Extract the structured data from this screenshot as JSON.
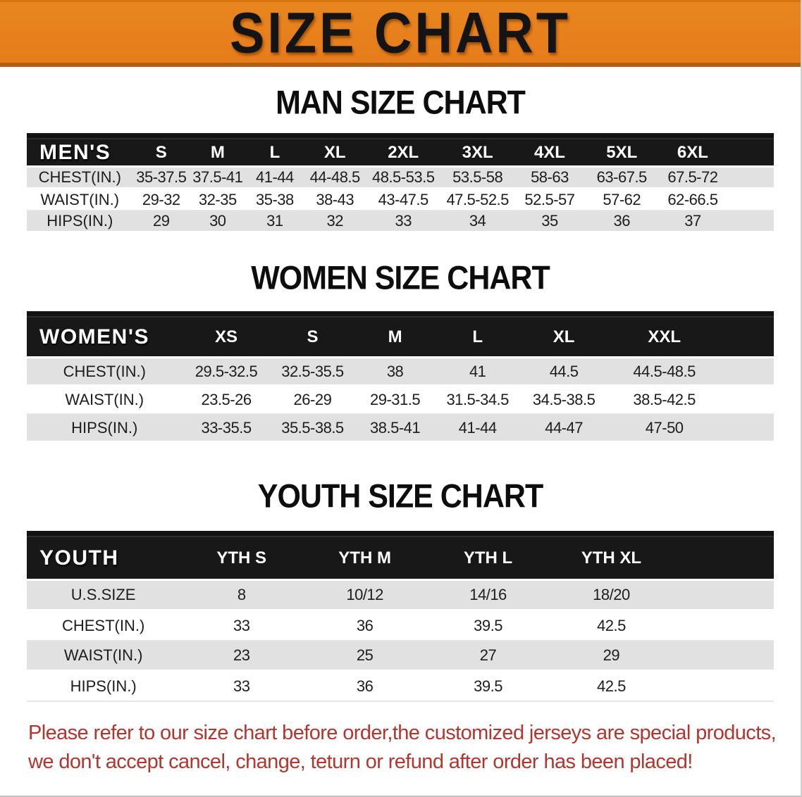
{
  "banner": {
    "title": "SIZE CHART"
  },
  "colors": {
    "banner_bg": "#E67C1A",
    "banner_border": "#B55D10",
    "banner_text": "#141414",
    "table_header_bg": "#181818",
    "table_header_text": "#FFFFFF",
    "row_shaded_bg": "#E1E1E1",
    "row_plain_bg": "#FFFFFF",
    "footer_text": "#B2362E"
  },
  "sections": [
    {
      "heading": "MAN SIZE CHART",
      "table": {
        "header_label": "MEN'S",
        "columns": [
          "S",
          "M",
          "L",
          "XL",
          "2XL",
          "3XL",
          "4XL",
          "5XL",
          "6XL"
        ],
        "rows": [
          {
            "label": "CHEST(IN.)",
            "values": [
              "35-37.5",
              "37.5-41",
              "41-44",
              "44-48.5",
              "48.5-53.5",
              "53.5-58",
              "58-63",
              "63-67.5",
              "67.5-72"
            ]
          },
          {
            "label": "WAIST(IN.)",
            "values": [
              "29-32",
              "32-35",
              "35-38",
              "38-43",
              "43-47.5",
              "47.5-52.5",
              "52.5-57",
              "57-62",
              "62-66.5"
            ]
          },
          {
            "label": "HIPS(IN.)",
            "values": [
              "29",
              "30",
              "31",
              "32",
              "33",
              "34",
              "35",
              "36",
              "37"
            ]
          }
        ]
      }
    },
    {
      "heading": "WOMEN SIZE CHART",
      "table": {
        "header_label": "WOMEN'S",
        "columns": [
          "XS",
          "S",
          "M",
          "L",
          "XL",
          "XXL"
        ],
        "rows": [
          {
            "label": "CHEST(IN.)",
            "values": [
              "29.5-32.5",
              "32.5-35.5",
              "38",
              "41",
              "44.5",
              "44.5-48.5"
            ]
          },
          {
            "label": "WAIST(IN.)",
            "values": [
              "23.5-26",
              "26-29",
              "29-31.5",
              "31.5-34.5",
              "34.5-38.5",
              "38.5-42.5"
            ]
          },
          {
            "label": "HIPS(IN.)",
            "values": [
              "33-35.5",
              "35.5-38.5",
              "38.5-41",
              "41-44",
              "44-47",
              "47-50"
            ]
          }
        ]
      }
    },
    {
      "heading": "YOUTH SIZE CHART",
      "table": {
        "header_label": "YOUTH",
        "columns": [
          "YTH S",
          "YTH M",
          "YTH L",
          "YTH XL"
        ],
        "rows": [
          {
            "label": "U.S.SIZE",
            "values": [
              "8",
              "10/12",
              "14/16",
              "18/20"
            ]
          },
          {
            "label": "CHEST(IN.)",
            "values": [
              "33",
              "36",
              "39.5",
              "42.5"
            ]
          },
          {
            "label": "WAIST(IN.)",
            "values": [
              "23",
              "25",
              "27",
              "29"
            ]
          },
          {
            "label": "HIPS(IN.)",
            "values": [
              "33",
              "36",
              "39.5",
              "42.5"
            ]
          }
        ]
      }
    }
  ],
  "footer": {
    "line1": "Please refer to our size chart before order,the customized jerseys are special products,",
    "line2": "we don't accept cancel, change, teturn or refund after order has been placed!"
  }
}
